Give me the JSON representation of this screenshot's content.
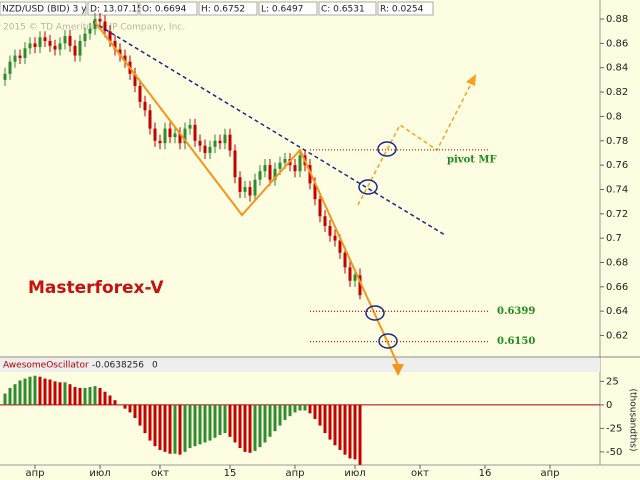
{
  "chart_data": [
    {
      "type": "candlestick",
      "title": "NZD/USD (BID) 3 y W",
      "info": [
        "D: 13.07.15",
        "O: 0.6694",
        "H: 0.6752",
        "L: 0.6497",
        "C: 0.6531",
        "R: 0.0254"
      ],
      "annotations": [
        "2015 © TD Ameritrade IP Company, Inc.",
        "Masterforex-V"
      ],
      "up_color": "#2e8b2e",
      "down_color": "#c40000",
      "open": [
        0.83,
        0.835,
        0.845,
        0.85,
        0.848,
        0.856,
        0.86,
        0.857,
        0.865,
        0.862,
        0.858,
        0.855,
        0.86,
        0.866,
        0.858,
        0.85,
        0.862,
        0.868,
        0.872,
        0.88,
        0.878,
        0.87,
        0.862,
        0.855,
        0.85,
        0.845,
        0.835,
        0.825,
        0.812,
        0.805,
        0.79,
        0.78,
        0.778,
        0.79,
        0.783,
        0.786,
        0.778,
        0.79,
        0.793,
        0.78,
        0.776,
        0.77,
        0.775,
        0.78,
        0.778,
        0.785,
        0.772,
        0.75,
        0.738,
        0.742,
        0.735,
        0.748,
        0.755,
        0.76,
        0.748,
        0.757,
        0.762,
        0.765,
        0.76,
        0.755,
        0.768,
        0.76,
        0.745,
        0.732,
        0.718,
        0.71,
        0.702,
        0.698,
        0.688,
        0.676,
        0.665,
        0.6694
      ],
      "high": [
        0.84,
        0.85,
        0.855,
        0.855,
        0.861,
        0.865,
        0.865,
        0.87,
        0.87,
        0.867,
        0.863,
        0.865,
        0.871,
        0.871,
        0.863,
        0.867,
        0.873,
        0.877,
        0.885,
        0.885,
        0.883,
        0.875,
        0.867,
        0.86,
        0.855,
        0.85,
        0.84,
        0.83,
        0.817,
        0.81,
        0.795,
        0.785,
        0.795,
        0.795,
        0.791,
        0.791,
        0.795,
        0.798,
        0.798,
        0.785,
        0.781,
        0.78,
        0.785,
        0.785,
        0.79,
        0.79,
        0.777,
        0.755,
        0.747,
        0.747,
        0.753,
        0.76,
        0.765,
        0.765,
        0.762,
        0.767,
        0.77,
        0.77,
        0.765,
        0.773,
        0.773,
        0.765,
        0.75,
        0.737,
        0.723,
        0.715,
        0.707,
        0.703,
        0.693,
        0.681,
        0.675,
        0.6752
      ],
      "low": [
        0.825,
        0.83,
        0.84,
        0.843,
        0.843,
        0.851,
        0.852,
        0.852,
        0.857,
        0.853,
        0.85,
        0.85,
        0.855,
        0.853,
        0.845,
        0.845,
        0.857,
        0.863,
        0.867,
        0.873,
        0.865,
        0.857,
        0.85,
        0.845,
        0.84,
        0.83,
        0.82,
        0.807,
        0.8,
        0.785,
        0.775,
        0.773,
        0.773,
        0.778,
        0.778,
        0.773,
        0.773,
        0.785,
        0.775,
        0.771,
        0.765,
        0.765,
        0.77,
        0.773,
        0.773,
        0.767,
        0.745,
        0.733,
        0.733,
        0.73,
        0.73,
        0.743,
        0.75,
        0.743,
        0.743,
        0.752,
        0.757,
        0.755,
        0.75,
        0.75,
        0.755,
        0.74,
        0.727,
        0.713,
        0.705,
        0.697,
        0.693,
        0.683,
        0.671,
        0.66,
        0.66,
        0.6497
      ],
      "close": [
        0.835,
        0.845,
        0.85,
        0.848,
        0.856,
        0.86,
        0.857,
        0.865,
        0.862,
        0.858,
        0.855,
        0.86,
        0.866,
        0.858,
        0.85,
        0.862,
        0.868,
        0.872,
        0.88,
        0.878,
        0.87,
        0.862,
        0.855,
        0.85,
        0.845,
        0.835,
        0.825,
        0.812,
        0.805,
        0.79,
        0.78,
        0.778,
        0.79,
        0.783,
        0.786,
        0.778,
        0.79,
        0.793,
        0.78,
        0.776,
        0.77,
        0.775,
        0.78,
        0.778,
        0.785,
        0.772,
        0.75,
        0.738,
        0.742,
        0.735,
        0.748,
        0.755,
        0.76,
        0.748,
        0.757,
        0.762,
        0.765,
        0.76,
        0.755,
        0.768,
        0.76,
        0.745,
        0.732,
        0.718,
        0.71,
        0.702,
        0.698,
        0.688,
        0.676,
        0.665,
        0.67,
        0.6531
      ],
      "levels": [
        {
          "value": 0.7725,
          "label": "pivot MF"
        },
        0.6399,
        {
          "value": 0.615,
          "label": "0.6150"
        }
      ],
      "level_color": "#d62020",
      "level_label_color": "#1e8c1e",
      "xlim": [
        -1,
        119
      ],
      "xticks": [
        {
          "value": 6,
          "label": "апр"
        },
        {
          "value": 19,
          "label": "июл"
        },
        {
          "value": 31,
          "label": "окт"
        },
        {
          "value": 45,
          "label": "15"
        },
        {
          "value": 58,
          "label": "апр"
        },
        {
          "value": 70,
          "label": "июл"
        },
        {
          "value": 83,
          "label": "окт"
        },
        {
          "value": 96,
          "label": "16"
        },
        {
          "value": 109,
          "label": "апр"
        }
      ],
      "ylim": [
        0.604,
        0.894
      ],
      "yticks": [
        0.62,
        0.64,
        0.66,
        0.68,
        0.7,
        0.72,
        0.74,
        0.76,
        0.78,
        0.8,
        0.82,
        0.84,
        0.86,
        0.88
      ]
    },
    {
      "type": "bar",
      "title": "AwesomeOscillator",
      "info": [
        "-0.0638256",
        "0"
      ],
      "y_axis_label": "(thousandths)",
      "up_color": "#2e8b2e",
      "down_color": "#c40000",
      "zero_color": "#b00000",
      "values": [
        12,
        18,
        22,
        26,
        28,
        30,
        31,
        30,
        28,
        27,
        25,
        24,
        24,
        22,
        19,
        18,
        18,
        19,
        20,
        18,
        14,
        10,
        5,
        0,
        -4,
        -8,
        -14,
        -22,
        -30,
        -38,
        -44,
        -48,
        -50,
        -52,
        -52,
        -53,
        -50,
        -46,
        -44,
        -42,
        -40,
        -38,
        -35,
        -32,
        -30,
        -34,
        -40,
        -46,
        -50,
        -51,
        -49,
        -45,
        -40,
        -34,
        -28,
        -22,
        -16,
        -12,
        -8,
        -6,
        -6,
        -9,
        -15,
        -22,
        -30,
        -37,
        -43,
        -48,
        -53,
        -57,
        -58,
        -63.8256
      ],
      "xlim": [
        -1,
        119
      ],
      "ylim": [
        -64,
        35
      ],
      "yticks": [
        25,
        0,
        -25,
        -50
      ]
    }
  ]
}
